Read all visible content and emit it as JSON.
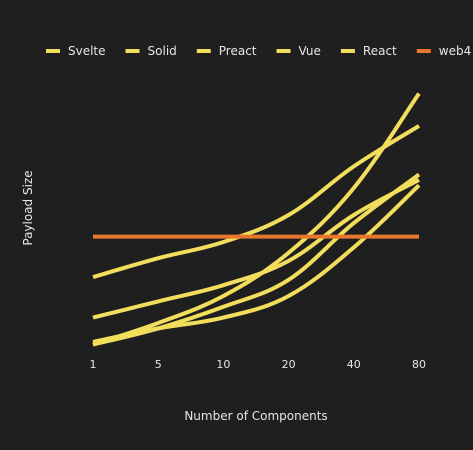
{
  "chart_data": {
    "type": "line",
    "title": "",
    "xlabel": "Number of Components",
    "ylabel": "Payload Size",
    "x_ticks": [
      "1",
      "5",
      "10",
      "20",
      "40",
      "80"
    ],
    "ylim": [
      0,
      100
    ],
    "grid": false,
    "legend_position": "top",
    "background": "#1f1f1f",
    "series": [
      {
        "name": "Svelte",
        "color": "#f2de5c",
        "values": [
          2,
          10,
          20,
          36,
          60,
          95
        ]
      },
      {
        "name": "Solid",
        "color": "#f2de5c",
        "values": [
          12,
          18,
          24,
          33,
          50,
          63
        ]
      },
      {
        "name": "Preact",
        "color": "#f2de5c",
        "values": [
          2,
          8,
          16,
          26,
          47,
          65
        ]
      },
      {
        "name": "Vue",
        "color": "#f2de5c",
        "values": [
          27,
          34,
          40,
          50,
          68,
          83
        ]
      },
      {
        "name": "React",
        "color": "#f2de5c",
        "values": [
          3,
          8,
          12,
          20,
          38,
          61
        ]
      },
      {
        "name": "web4",
        "color": "#e8772e",
        "values": [
          42,
          42,
          42,
          42,
          42,
          42
        ]
      }
    ]
  }
}
